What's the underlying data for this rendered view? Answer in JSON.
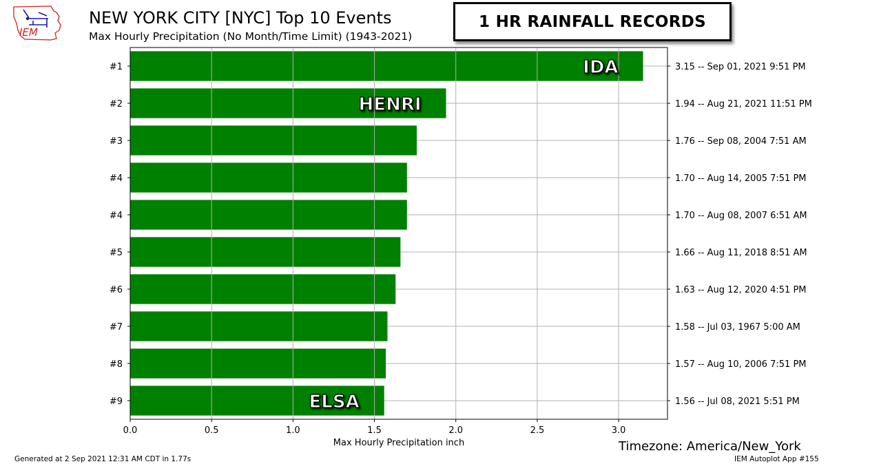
{
  "header": {
    "title": "NEW YORK CITY [NYC] Top 10 Events",
    "subtitle": "Max Hourly Precipitation  (No Month/Time Limit) (1943-2021)",
    "banner": "1 HR RAINFALL RECORDS",
    "logo_text": "IEM"
  },
  "footer": {
    "timezone": "Timezone: America/New_York",
    "generated": "Generated at 2 Sep 2021 12:31 AM CDT in 1.77s",
    "app": "IEM Autoplot App #155"
  },
  "colors": {
    "bar": "#008000",
    "grid": "#b0b0b0",
    "logo_red": "#cc2222",
    "logo_blue": "#1a1aa6"
  },
  "chart_data": {
    "type": "bar",
    "orientation": "horizontal",
    "xlabel": "Max Hourly Precipitation inch",
    "xlim": [
      0,
      3.3
    ],
    "xticks": [
      0.0,
      0.5,
      1.0,
      1.5,
      2.0,
      2.5,
      3.0
    ],
    "grid": true,
    "categories": [
      "#1",
      "#2",
      "#3",
      "#4",
      "#4",
      "#5",
      "#6",
      "#7",
      "#8",
      "#9"
    ],
    "values": [
      3.15,
      1.94,
      1.76,
      1.7,
      1.7,
      1.66,
      1.63,
      1.58,
      1.57,
      1.56
    ],
    "right_labels": [
      "3.15 -- Sep 01, 2021 9:51 PM",
      "1.94 -- Aug 21, 2021 11:51 PM",
      "1.76 -- Sep 08, 2004 7:51 AM",
      "1.70 -- Aug 14, 2005 7:51 PM",
      "1.70 -- Aug 08, 2007 6:51 AM",
      "1.66 -- Aug 11, 2018 8:51 AM",
      "1.63 -- Aug 12, 2020 4:51 PM",
      "1.58 -- Jul 03, 1967 5:00 AM",
      "1.57 -- Aug 10, 2006 7:51 PM",
      "1.56 -- Jul 08, 2021 5:51 PM"
    ],
    "annotations": [
      {
        "text": "IDA",
        "bar_index": 0
      },
      {
        "text": "HENRI",
        "bar_index": 1
      },
      {
        "text": "ELSA",
        "bar_index": 9
      }
    ]
  }
}
